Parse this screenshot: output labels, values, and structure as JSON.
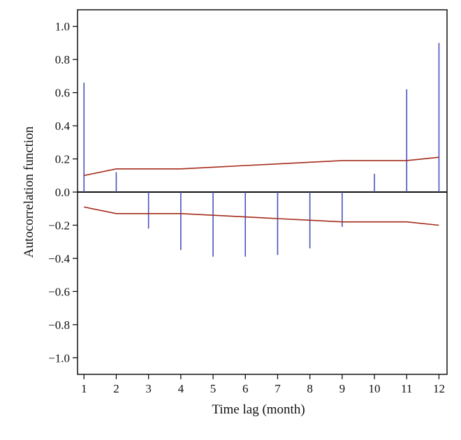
{
  "chart_data": {
    "type": "bar",
    "title": "",
    "xlabel": "Time lag (month)",
    "ylabel": "Autocorrelation function",
    "x": [
      1,
      2,
      3,
      4,
      5,
      6,
      7,
      8,
      9,
      10,
      11,
      12
    ],
    "xticks": [
      "1",
      "2",
      "3",
      "4",
      "5",
      "6",
      "7",
      "8",
      "9",
      "10",
      "11",
      "12"
    ],
    "yticks": [
      "1.0",
      "0.8",
      "0.6",
      "0.4",
      "0.2",
      "0.0",
      "−0.2",
      "−0.4",
      "−0.6",
      "−0.8",
      "−1.0"
    ],
    "ytick_values": [
      1.0,
      0.8,
      0.6,
      0.4,
      0.2,
      0.0,
      -0.2,
      -0.4,
      -0.6,
      -0.8,
      -1.0
    ],
    "xlim": [
      0.8,
      12.25
    ],
    "ylim": [
      -1.1,
      1.1
    ],
    "grid": false,
    "series": [
      {
        "type": "bar",
        "values": [
          0.66,
          0.12,
          -0.22,
          -0.35,
          -0.39,
          -0.39,
          -0.38,
          -0.34,
          -0.21,
          0.11,
          0.62,
          0.9
        ]
      },
      {
        "type": "line",
        "values": [
          0.1,
          0.14,
          0.14,
          0.14,
          0.15,
          0.16,
          0.17,
          0.18,
          0.19,
          0.19,
          0.19,
          0.21
        ]
      },
      {
        "type": "line",
        "values": [
          -0.09,
          -0.13,
          -0.13,
          -0.13,
          -0.14,
          -0.15,
          -0.16,
          -0.17,
          -0.18,
          -0.18,
          -0.18,
          -0.2
        ]
      }
    ],
    "colors": {
      "bars": "#4a52b8",
      "bounds": "#a52a1c",
      "axis": "#111111",
      "zero_line": "#111111"
    }
  }
}
